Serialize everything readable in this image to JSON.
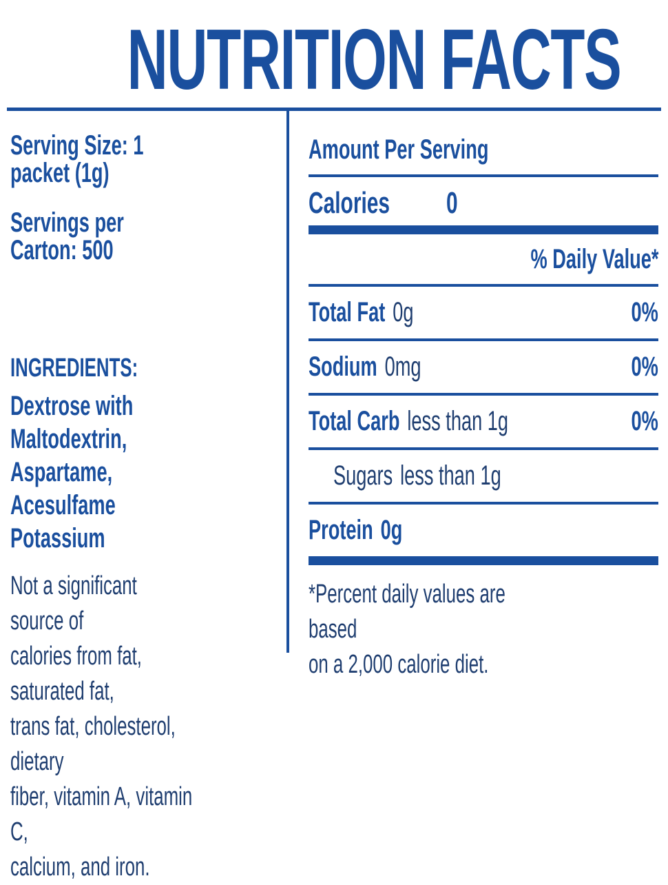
{
  "colors": {
    "royal_blue": "#1a4f9e",
    "navy": "#1f3e70"
  },
  "title": "NUTRITION FACTS",
  "serving_panel": {
    "serving_size": "Serving Size: 1 packet (1g)",
    "servings_per_carton": "Servings per Carton: 500",
    "ingredients_heading": "INGREDIENTS:",
    "ingredients": "Dextrose with Maltodextrin,\nAspartame, Acesulfame\nPotassium",
    "disclaimer": "Not a significant source of\ncalories from fat, saturated fat,\ntrans fat, cholesterol, dietary\nfiber, vitamin A, vitamin C,\ncalcium, and iron."
  },
  "facts_panel": {
    "amount_per_serving": "Amount Per Serving",
    "calories_label": "Calories",
    "calories_value": "0",
    "daily_value_header": "% Daily Value*",
    "rows": [
      {
        "name": "Total Fat",
        "amount": "0g",
        "daily_value": "0%"
      },
      {
        "name": "Sodium",
        "amount": "0mg",
        "daily_value": "0%"
      },
      {
        "name": "Total Carb",
        "amount": "less than 1g",
        "daily_value": "0%"
      },
      {
        "name": "Sugars",
        "amount": "less than 1g",
        "daily_value": ""
      },
      {
        "name": "Protein",
        "amount": "0g",
        "daily_value": ""
      }
    ],
    "footnote": "*Percent daily values are based\non a 2,000 calorie diet."
  }
}
